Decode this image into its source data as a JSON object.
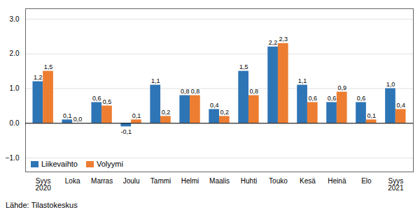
{
  "chart_data": {
    "type": "bar",
    "categories": [
      "Syys\n2020",
      "Loka",
      "Marras",
      "Joulu",
      "Tammi",
      "Helmi",
      "Maalis",
      "Huhti",
      "Touko",
      "Kesä",
      "Heinä",
      "Elo",
      "Syys\n2021"
    ],
    "series": [
      {
        "name": "Liikevaihto",
        "color": "#2E75B6",
        "values": [
          1.2,
          0.1,
          0.6,
          -0.1,
          1.1,
          0.8,
          0.4,
          1.5,
          2.2,
          1.1,
          0.6,
          0.6,
          1.0
        ],
        "value_labels": [
          "1,2",
          "0,1",
          "0,6",
          "-0,1",
          "1,1",
          "0,8",
          "0,4",
          "1,5",
          "2,2",
          "1,1",
          "0,6",
          "0,6",
          "1,0"
        ]
      },
      {
        "name": "Volyymi",
        "color": "#ED7D31",
        "values": [
          1.5,
          0.0,
          0.5,
          0.1,
          0.2,
          0.8,
          0.2,
          0.8,
          2.3,
          0.6,
          0.9,
          0.1,
          0.4
        ],
        "value_labels": [
          "1,5",
          "0,0",
          "0,5",
          "0,1",
          "0,2",
          "0,8",
          "0,2",
          "0,8",
          "2,3",
          "0,6",
          "0,9",
          "0,1",
          "0,4"
        ]
      }
    ],
    "ylim": [
      -1.4,
      3.3
    ],
    "yticks": [
      -1,
      0,
      1,
      2,
      3
    ],
    "grid": true,
    "legend": "lower left",
    "data_labels": true,
    "annotations": [
      "Lähde: Tilastokeskus"
    ]
  }
}
